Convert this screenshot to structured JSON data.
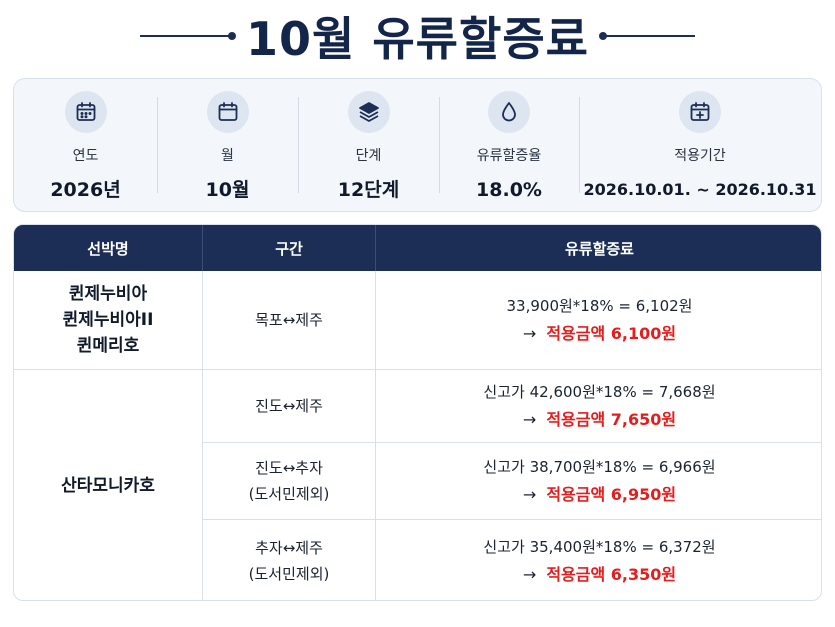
{
  "title": "10월 유류할증료",
  "info": [
    {
      "icon": "calendar-icon",
      "label": "연도",
      "value": "2026년"
    },
    {
      "icon": "calendar-icon",
      "label": "월",
      "value": "10월"
    },
    {
      "icon": "layers-icon",
      "label": "단계",
      "value": "12단계"
    },
    {
      "icon": "drop-icon",
      "label": "유류할증율",
      "value": "18.0%"
    },
    {
      "icon": "calendar-plus-icon",
      "label": "적용기간",
      "value": "2026.10.01. ~ 2026.10.31"
    }
  ],
  "table": {
    "headers": [
      "선박명",
      "구간",
      "유류할증료"
    ],
    "ships": [
      {
        "names": [
          "퀸제누비아",
          "퀸제누비아II",
          "퀸메리호"
        ]
      },
      {
        "names": [
          "산타모니카호"
        ]
      }
    ],
    "rows": [
      {
        "route": [
          "목포↔제주"
        ],
        "calc": "33,900원*18% = 6,102원",
        "arrow": "→",
        "applied_label": "적용금액 6,100원"
      },
      {
        "route": [
          "진도↔제주"
        ],
        "calc": "신고가 42,600원*18% = 7,668원",
        "arrow": "→",
        "applied_label": "적용금액 7,650원"
      },
      {
        "route": [
          "진도↔추자",
          "(도서민제외)"
        ],
        "calc": "신고가 38,700원*18% = 6,966원",
        "arrow": "→",
        "applied_label": "적용금액 6,950원"
      },
      {
        "route": [
          "추자↔제주",
          "(도서민제외)"
        ],
        "calc": "신고가 35,400원*18% = 6,372원",
        "arrow": "→",
        "applied_label": "적용금액 6,350원"
      }
    ]
  },
  "colors": {
    "navy": "#1c2e55",
    "accent_red": "#e41e1e",
    "panel_bg": "#f3f6fb"
  }
}
